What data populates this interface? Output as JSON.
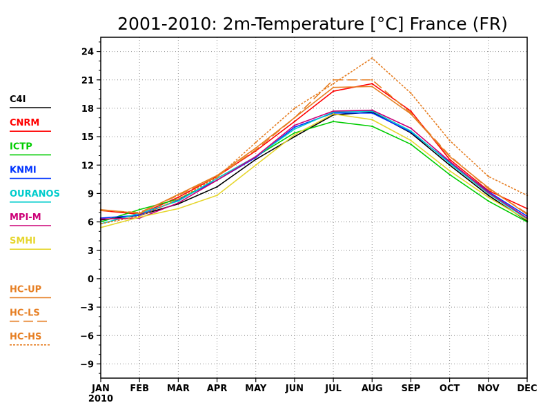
{
  "chart_data": {
    "type": "line",
    "title": "2001-2010: 2m-Temperature [°C] France (FR)",
    "xlabel": "",
    "ylabel": "",
    "categories": [
      "JAN",
      "FEB",
      "MAR",
      "APR",
      "MAY",
      "JUN",
      "JUL",
      "AUG",
      "SEP",
      "OCT",
      "NOV",
      "DEC"
    ],
    "x_sublabel": "2010",
    "ylim": [
      -10.5,
      25.5
    ],
    "yticks": [
      -9,
      -6,
      -3,
      0,
      3,
      6,
      9,
      12,
      15,
      18,
      21,
      24
    ],
    "grid": true,
    "legend_position": "left",
    "series": [
      {
        "name": "C4I",
        "color": "#000000",
        "dash": "solid",
        "values": [
          6.2,
          6.7,
          7.9,
          9.7,
          12.6,
          15.0,
          17.3,
          17.6,
          15.4,
          12.0,
          8.8,
          6.1
        ]
      },
      {
        "name": "CNRM",
        "color": "#ff0000",
        "dash": "solid",
        "values": [
          7.2,
          6.8,
          8.6,
          10.8,
          13.5,
          16.6,
          19.8,
          20.6,
          17.7,
          12.6,
          9.3,
          7.4
        ]
      },
      {
        "name": "ICTP",
        "color": "#00cc00",
        "dash": "solid",
        "values": [
          6.0,
          7.3,
          8.4,
          10.4,
          12.9,
          15.4,
          16.6,
          16.1,
          14.2,
          11.0,
          8.2,
          6.0
        ]
      },
      {
        "name": "KNMI",
        "color": "#0033ff",
        "dash": "solid",
        "values": [
          6.4,
          6.7,
          8.3,
          10.4,
          12.8,
          16.0,
          17.5,
          17.5,
          15.5,
          12.3,
          9.2,
          6.6
        ]
      },
      {
        "name": "OURANOS",
        "color": "#00cccc",
        "dash": "solid",
        "values": [
          5.8,
          6.9,
          8.2,
          10.6,
          12.9,
          15.8,
          17.6,
          17.7,
          15.6,
          12.2,
          9.0,
          6.3
        ]
      },
      {
        "name": "MPI-M",
        "color": "#cc0077",
        "dash": "solid",
        "values": [
          6.3,
          6.4,
          8.0,
          10.4,
          12.9,
          16.2,
          17.7,
          17.8,
          15.9,
          12.4,
          9.1,
          6.4
        ]
      },
      {
        "name": "SMHI",
        "color": "#e6d62e",
        "dash": "solid",
        "values": [
          5.4,
          6.5,
          7.4,
          8.8,
          12.0,
          15.2,
          17.4,
          16.8,
          14.6,
          11.4,
          8.6,
          6.2
        ]
      },
      {
        "name": "HC-UP",
        "color": "#e67e22",
        "dash": "solid",
        "values": [
          7.3,
          6.9,
          8.9,
          10.9,
          13.8,
          17.0,
          20.2,
          20.3,
          17.4,
          12.9,
          9.6,
          6.8
        ]
      },
      {
        "name": "HC-LS",
        "color": "#e67e22",
        "dash": "long",
        "values": [
          7.2,
          7.0,
          8.8,
          10.8,
          13.6,
          17.0,
          21.0,
          21.0,
          17.5,
          13.0,
          9.5,
          6.9
        ]
      },
      {
        "name": "HC-HS",
        "color": "#e67e22",
        "dash": "short",
        "values": [
          5.8,
          6.6,
          8.4,
          10.7,
          14.4,
          18.0,
          20.6,
          23.3,
          19.6,
          14.6,
          10.8,
          8.8
        ]
      }
    ]
  }
}
